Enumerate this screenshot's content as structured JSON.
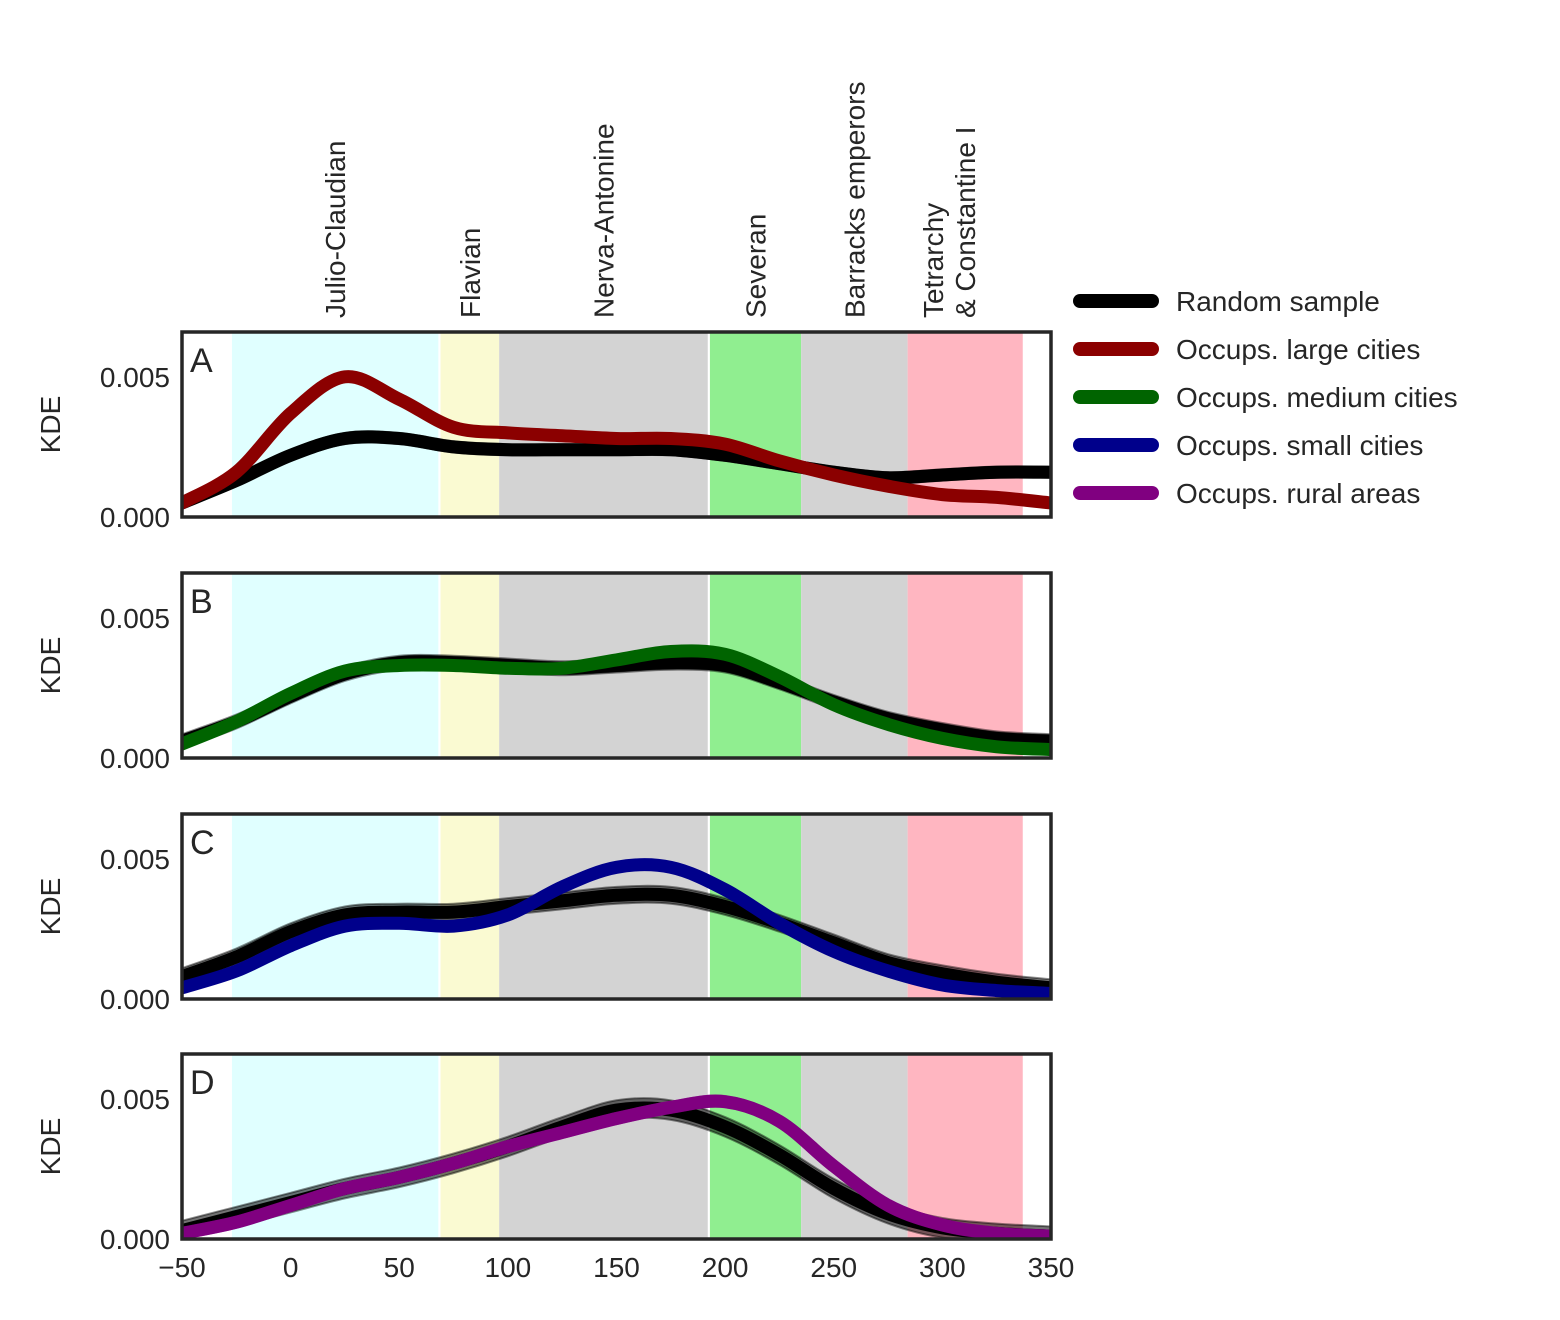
{
  "chart_data": {
    "type": "area",
    "x_range": [
      -50,
      350
    ],
    "x_ticks": [
      -50,
      0,
      50,
      100,
      150,
      200,
      250,
      300,
      350
    ],
    "x_tick_labels": [
      "−50",
      "0",
      "50",
      "100",
      "150",
      "200",
      "250",
      "300",
      "350"
    ],
    "y_range": [
      0,
      0.0066
    ],
    "y_ticks": [
      0.0,
      0.005
    ],
    "y_tick_labels": [
      "0.000",
      "0.005"
    ],
    "ylabel": "KDE",
    "grid": false,
    "legend_position": "right of top panel",
    "periods": [
      {
        "name": "Julio-Claudian",
        "start": -27,
        "end": 68,
        "color": "#e0ffff"
      },
      {
        "name": "Flavian",
        "start": 69,
        "end": 96,
        "color": "#fafad2"
      },
      {
        "name": "Nerva-Antonine",
        "start": 96,
        "end": 192,
        "color": "#d3d3d3"
      },
      {
        "name": "Severan",
        "start": 193,
        "end": 235,
        "color": "#90ee90"
      },
      {
        "name": "Barracks emperors",
        "start": 235,
        "end": 284,
        "color": "#d3d3d3"
      },
      {
        "name": "Tetrarchy\n& Constantine I",
        "start": 284,
        "end": 337,
        "color": "#ffb6c1"
      }
    ],
    "legend": [
      {
        "name": "Random sample",
        "color": "#000000"
      },
      {
        "name": "Occups. large cities",
        "color": "#8b0000"
      },
      {
        "name": "Occups. medium cities",
        "color": "#006400"
      },
      {
        "name": "Occups. small cities",
        "color": "#00008b"
      },
      {
        "name": "Occups. rural areas",
        "color": "#800080"
      }
    ],
    "panels": [
      {
        "label": "A",
        "x": [
          -50,
          -25,
          0,
          25,
          50,
          75,
          100,
          125,
          150,
          175,
          200,
          225,
          250,
          275,
          300,
          325,
          350
        ],
        "series": [
          {
            "name": "Random sample",
            "color": "#000000",
            "band": 0.0004,
            "values": [
              0.0005,
              0.0013,
              0.0022,
              0.0028,
              0.0028,
              0.0025,
              0.0024,
              0.0024,
              0.0024,
              0.0024,
              0.0022,
              0.0019,
              0.0016,
              0.0014,
              0.0015,
              0.0016,
              0.0016
            ]
          },
          {
            "name": "Occups. large cities",
            "color": "#8b0000",
            "band": 0.0003,
            "values": [
              0.0005,
              0.0016,
              0.0037,
              0.005,
              0.0042,
              0.0032,
              0.003,
              0.0029,
              0.0028,
              0.0028,
              0.0026,
              0.002,
              0.0015,
              0.0011,
              0.0008,
              0.0007,
              0.0005
            ]
          }
        ]
      },
      {
        "label": "B",
        "x": [
          -50,
          -25,
          0,
          25,
          50,
          75,
          100,
          125,
          150,
          175,
          200,
          225,
          250,
          275,
          300,
          325,
          350
        ],
        "series": [
          {
            "name": "Random sample",
            "color": "#000000",
            "band": 0.0005,
            "values": [
              0.0006,
              0.0013,
              0.0022,
              0.003,
              0.0034,
              0.0034,
              0.0033,
              0.0032,
              0.0033,
              0.0034,
              0.0033,
              0.0027,
              0.002,
              0.0014,
              0.001,
              0.0007,
              0.0006
            ]
          },
          {
            "name": "Occups. medium cities",
            "color": "#006400",
            "band": 0.0003,
            "values": [
              0.0005,
              0.0013,
              0.0023,
              0.0031,
              0.0033,
              0.0033,
              0.0032,
              0.0032,
              0.0035,
              0.0038,
              0.0037,
              0.0029,
              0.0019,
              0.0012,
              0.0007,
              0.0004,
              0.0003
            ]
          }
        ]
      },
      {
        "label": "C",
        "x": [
          -50,
          -25,
          0,
          25,
          50,
          75,
          100,
          125,
          150,
          175,
          200,
          225,
          250,
          275,
          300,
          325,
          350
        ],
        "series": [
          {
            "name": "Random sample",
            "color": "#000000",
            "band": 0.0006,
            "values": [
              0.0008,
              0.0015,
              0.0024,
              0.003,
              0.0031,
              0.0031,
              0.0033,
              0.0035,
              0.0037,
              0.0037,
              0.0033,
              0.0027,
              0.002,
              0.0013,
              0.0009,
              0.0006,
              0.0004
            ]
          },
          {
            "name": "Occups. small cities",
            "color": "#00008b",
            "band": 0.0003,
            "values": [
              0.0004,
              0.001,
              0.0019,
              0.0026,
              0.0027,
              0.0026,
              0.003,
              0.004,
              0.0047,
              0.0047,
              0.0039,
              0.0027,
              0.0017,
              0.001,
              0.0005,
              0.0003,
              0.0002
            ]
          }
        ]
      },
      {
        "label": "D",
        "x": [
          -50,
          -25,
          0,
          25,
          50,
          75,
          100,
          125,
          150,
          175,
          200,
          225,
          250,
          275,
          300,
          325,
          350
        ],
        "series": [
          {
            "name": "Random sample",
            "color": "#000000",
            "band": 0.0007,
            "values": [
              0.0003,
              0.0008,
              0.0013,
              0.0018,
              0.0022,
              0.0027,
              0.0033,
              0.004,
              0.0046,
              0.0046,
              0.004,
              0.003,
              0.0018,
              0.0009,
              0.0004,
              0.0002,
              0.0001
            ]
          },
          {
            "name": "Occups. rural areas",
            "color": "#800080",
            "band": 0.0004,
            "values": [
              0.0002,
              0.0006,
              0.0012,
              0.0018,
              0.0022,
              0.0027,
              0.0033,
              0.0038,
              0.0043,
              0.0047,
              0.0049,
              0.0042,
              0.0026,
              0.0012,
              0.0005,
              0.0002,
              0.0001
            ]
          }
        ]
      }
    ]
  }
}
